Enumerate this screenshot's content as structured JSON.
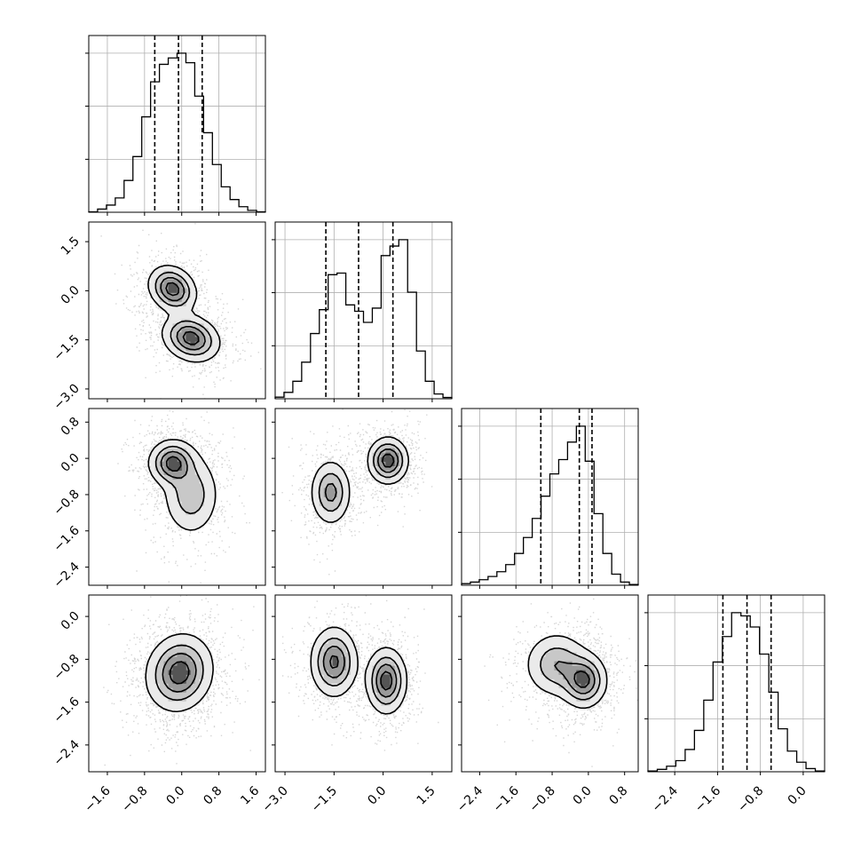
{
  "chart_data": {
    "type": "corner",
    "grid": true,
    "dashed_quantile_lines": [
      0.16,
      0.5,
      0.84
    ],
    "parameters": [
      {
        "range": [
          -2.0,
          1.8
        ],
        "ticks": [
          -1.6,
          -0.8,
          0.0,
          0.8,
          1.6
        ],
        "tick_labels": [
          "−1.6",
          "−0.8",
          "0.0",
          "0.8",
          "1.6"
        ],
        "quantiles": [
          -0.58,
          -0.07,
          0.44
        ],
        "hist": [
          0.003,
          0.02,
          0.045,
          0.09,
          0.2,
          0.35,
          0.6,
          0.82,
          0.93,
          0.97,
          1.0,
          0.94,
          0.73,
          0.5,
          0.3,
          0.16,
          0.08,
          0.035,
          0.012,
          0.003
        ]
      },
      {
        "range": [
          -3.3,
          2.1
        ],
        "ticks": [
          -3.0,
          -1.5,
          0.0,
          1.5
        ],
        "tick_labels": [
          "−3.0",
          "−1.5",
          "0.0",
          "1.5"
        ],
        "quantiles": [
          -1.75,
          -0.75,
          0.3
        ],
        "hist": [
          0.01,
          0.04,
          0.11,
          0.23,
          0.41,
          0.56,
          0.78,
          0.79,
          0.59,
          0.55,
          0.48,
          0.57,
          0.9,
          0.96,
          1.0,
          0.67,
          0.3,
          0.11,
          0.03,
          0.008
        ]
      },
      {
        "range": [
          -2.8,
          1.1
        ],
        "ticks": [
          -2.4,
          -1.6,
          -0.8,
          0.0,
          0.8
        ],
        "tick_labels": [
          "−2.4",
          "−1.6",
          "−0.8",
          "0.0",
          "0.8"
        ],
        "quantiles": [
          -1.05,
          -0.2,
          0.08
        ],
        "hist": [
          0.01,
          0.02,
          0.035,
          0.055,
          0.085,
          0.13,
          0.2,
          0.3,
          0.42,
          0.56,
          0.7,
          0.79,
          0.9,
          1.0,
          0.78,
          0.45,
          0.2,
          0.07,
          0.02,
          0.005
        ]
      },
      {
        "range": [
          -2.9,
          0.4
        ],
        "ticks": [
          -2.4,
          -1.6,
          -0.8,
          0.0
        ],
        "tick_labels": [
          "−2.4",
          "−1.6",
          "−0.8",
          "0.0"
        ],
        "quantiles": [
          -1.5,
          -1.05,
          -0.6
        ],
        "hist": [
          0.005,
          0.015,
          0.035,
          0.07,
          0.14,
          0.26,
          0.45,
          0.69,
          0.85,
          1.0,
          0.98,
          0.91,
          0.74,
          0.5,
          0.27,
          0.13,
          0.06,
          0.02,
          0.005
        ]
      }
    ],
    "pair_density": {
      "1_0": {
        "components": [
          {
            "mx": -0.2,
            "my": 0.05,
            "sx": 0.25,
            "sy": 0.35,
            "rho": -0.2,
            "w": 1.0
          },
          {
            "mx": 0.2,
            "my": -1.45,
            "sx": 0.3,
            "sy": 0.35,
            "rho": -0.2,
            "w": 1.0
          }
        ]
      },
      "2_0": {
        "components": [
          {
            "mx": -0.2,
            "my": -0.1,
            "sx": 0.25,
            "sy": 0.25,
            "rho": 0.0,
            "w": 1.4
          },
          {
            "mx": 0.2,
            "my": -0.8,
            "sx": 0.3,
            "sy": 0.45,
            "rho": 0.0,
            "w": 0.8
          }
        ]
      },
      "3_0": {
        "components": [
          {
            "mx": -0.05,
            "my": -1.05,
            "sx": 0.35,
            "sy": 0.35,
            "rho": 0.1,
            "w": 1.0
          }
        ]
      },
      "2_1": {
        "components": [
          {
            "mx": -1.6,
            "my": -0.75,
            "sx": 0.3,
            "sy": 0.35,
            "rho": 0.0,
            "w": 0.9
          },
          {
            "mx": 0.15,
            "my": -0.05,
            "sx": 0.3,
            "sy": 0.25,
            "rho": 0.0,
            "w": 1.3
          }
        ]
      },
      "3_1": {
        "components": [
          {
            "mx": -1.5,
            "my": -0.85,
            "sx": 0.35,
            "sy": 0.32,
            "rho": 0.0,
            "w": 1.0
          },
          {
            "mx": 0.1,
            "my": -1.2,
            "sx": 0.3,
            "sy": 0.3,
            "rho": 0.0,
            "w": 1.1
          }
        ]
      },
      "3_2": {
        "components": [
          {
            "mx": -0.1,
            "my": -1.2,
            "sx": 0.25,
            "sy": 0.25,
            "rho": 0.0,
            "w": 1.4
          },
          {
            "mx": -0.7,
            "my": -0.9,
            "sx": 0.35,
            "sy": 0.3,
            "rho": 0.0,
            "w": 0.9
          }
        ]
      }
    },
    "contour_levels": [
      0.12,
      0.35,
      0.6,
      0.85
    ]
  }
}
